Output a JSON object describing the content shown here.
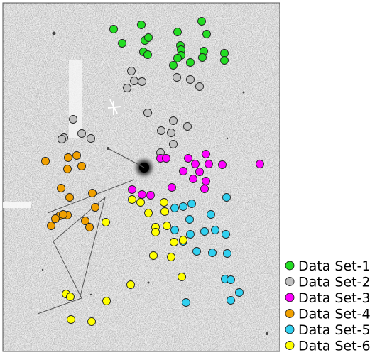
{
  "chart_data": {
    "type": "scatter",
    "title": "",
    "xlabel": "",
    "ylabel": "",
    "grid": false,
    "legend_position": "bottom-right",
    "series": [
      {
        "name": "Data Set-1",
        "color": "#22dd22",
        "points": [
          [
            160,
            41
          ],
          [
            199,
            35
          ],
          [
            284,
            30
          ],
          [
            250,
            45
          ],
          [
            291,
            48
          ],
          [
            172,
            61
          ],
          [
            204,
            57
          ],
          [
            209,
            53
          ],
          [
            254,
            64
          ],
          [
            255,
            70
          ],
          [
            202,
            73
          ],
          [
            208,
            77
          ],
          [
            287,
            72
          ],
          [
            316,
            75
          ],
          [
            255,
            78
          ],
          [
            250,
            82
          ],
          [
            285,
            81
          ],
          [
            316,
            85
          ],
          [
            268,
            88
          ],
          [
            244,
            92
          ]
        ]
      },
      {
        "name": "Data Set-2",
        "color": "#c0c0c0",
        "points": [
          [
            185,
            100
          ],
          [
            189,
            114
          ],
          [
            200,
            115
          ],
          [
            249,
            109
          ],
          [
            268,
            112
          ],
          [
            179,
            124
          ],
          [
            281,
            122
          ],
          [
            208,
            159
          ],
          [
            244,
            170
          ],
          [
            103,
            168
          ],
          [
            264,
            178
          ],
          [
            227,
            184
          ],
          [
            241,
            187
          ],
          [
            115,
            188
          ],
          [
            128,
            195
          ],
          [
            90,
            194
          ],
          [
            87,
            196
          ],
          [
            244,
            203
          ],
          [
            226,
            215
          ]
        ]
      },
      {
        "name": "Data Set-3",
        "color": "#ff00ff",
        "points": [
          [
            226,
            223
          ],
          [
            234,
            223
          ],
          [
            290,
            217
          ],
          [
            265,
            223
          ],
          [
            275,
            231
          ],
          [
            294,
            231
          ],
          [
            313,
            232
          ],
          [
            366,
            231
          ],
          [
            258,
            241
          ],
          [
            281,
            242
          ],
          [
            272,
            252
          ],
          [
            290,
            255
          ],
          [
            288,
            266
          ],
          [
            242,
            264
          ],
          [
            186,
            267
          ],
          [
            200,
            274
          ],
          [
            212,
            275
          ]
        ]
      },
      {
        "name": "Data Set-4",
        "color": "#f0a000",
        "points": [
          [
            64,
            227
          ],
          [
            96,
            222
          ],
          [
            108,
            219
          ],
          [
            95,
            238
          ],
          [
            115,
            234
          ],
          [
            86,
            265
          ],
          [
            130,
            272
          ],
          [
            98,
            278
          ],
          [
            134,
            292
          ],
          [
            95,
            303
          ],
          [
            84,
            304
          ],
          [
            89,
            302
          ],
          [
            78,
            308
          ],
          [
            120,
            311
          ],
          [
            72,
            318
          ],
          [
            126,
            320
          ]
        ]
      },
      {
        "name": "Data Set-5",
        "color": "#30d0f0",
        "points": [
          [
            319,
            278
          ],
          [
            270,
            287
          ],
          [
            258,
            291
          ],
          [
            246,
            293
          ],
          [
            297,
            302
          ],
          [
            267,
            309
          ],
          [
            303,
            324
          ],
          [
            246,
            324
          ],
          [
            288,
            326
          ],
          [
            268,
            330
          ],
          [
            318,
            330
          ],
          [
            245,
            341
          ],
          [
            258,
            340
          ],
          [
            277,
            354
          ],
          [
            299,
            356
          ],
          [
            320,
            357
          ],
          [
            317,
            393
          ],
          [
            325,
            394
          ],
          [
            337,
            412
          ],
          [
            325,
            423
          ],
          [
            262,
            426
          ]
        ]
      },
      {
        "name": "Data Set-6",
        "color": "#ffff00",
        "points": [
          [
            186,
            281
          ],
          [
            198,
            285
          ],
          [
            231,
            285
          ],
          [
            209,
            300
          ],
          [
            232,
            298
          ],
          [
            149,
            313
          ],
          [
            219,
            320
          ],
          [
            235,
            318
          ],
          [
            219,
            327
          ],
          [
            245,
            341
          ],
          [
            258,
            338
          ],
          [
            216,
            360
          ],
          [
            241,
            362
          ],
          [
            256,
            390
          ],
          [
            184,
            401
          ],
          [
            93,
            414
          ],
          [
            99,
            418
          ],
          [
            150,
            424
          ],
          [
            100,
            450
          ],
          [
            129,
            453
          ]
        ]
      }
    ]
  }
}
